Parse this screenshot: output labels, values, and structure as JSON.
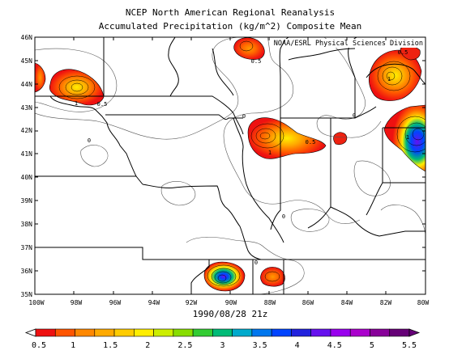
{
  "figure": {
    "title_line1": "NCEP North American Regional Reanalysis",
    "title_line2": "Accumulated Precipitation (kg/m^2) Composite Mean",
    "credit": "NOAA/ESRL Physical Sciences Division",
    "date_label": "1990/08/28 21z"
  },
  "map": {
    "lat_ticks": [
      "46N",
      "45N",
      "44N",
      "43N",
      "42N",
      "41N",
      "40N",
      "39N",
      "38N",
      "37N",
      "36N",
      "35N"
    ],
    "lon_ticks": [
      "100W",
      "98W",
      "96W",
      "94W",
      "92W",
      "90W",
      "88W",
      "86W",
      "84W",
      "82W",
      "80W"
    ],
    "contour_labels": [
      "0.5",
      "0.5",
      "0.5",
      "0",
      "0",
      "0",
      "0",
      "0",
      "0.5",
      "1",
      "1",
      "1",
      "1"
    ]
  },
  "colorbar": {
    "tick_labels": [
      "0.5",
      "1",
      "1.5",
      "2",
      "2.5",
      "3",
      "3.5",
      "4",
      "4.5",
      "5",
      "5.5"
    ],
    "colors": [
      "#ee1111",
      "#ff5500",
      "#ff8800",
      "#ffaa00",
      "#ffcc00",
      "#ffee00",
      "#ccee00",
      "#88dd00",
      "#33cc33",
      "#00bb77",
      "#00aacc",
      "#0077ee",
      "#0044ff",
      "#2222dd",
      "#6611ee",
      "#9900ee",
      "#aa00cc",
      "#880099",
      "#660077"
    ]
  }
}
